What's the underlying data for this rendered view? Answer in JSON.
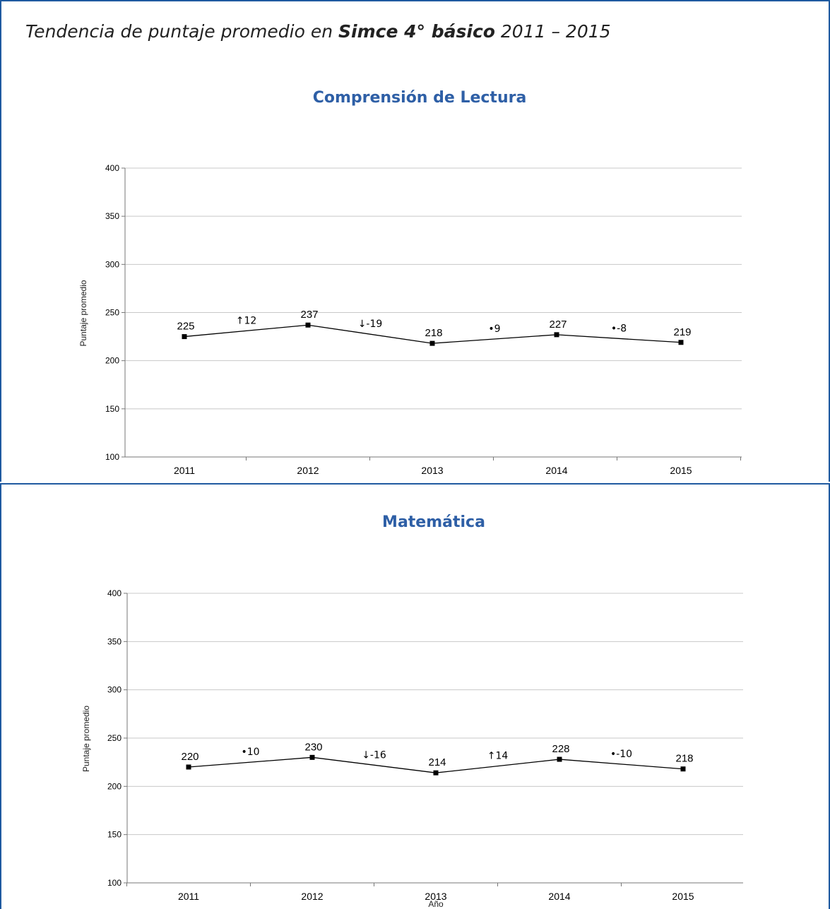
{
  "page_title": {
    "prefix": "Tendencia de puntaje promedio en ",
    "bold": "Simce 4° básico",
    "suffix": " 2011 – 2015"
  },
  "chart_data": [
    {
      "type": "line",
      "title": "Comprensión de Lectura",
      "ylabel": "Puntaje promedio",
      "xlabel": "",
      "ylim": [
        100,
        400
      ],
      "yticks": [
        100,
        150,
        200,
        250,
        300,
        350,
        400
      ],
      "grid": true,
      "categories": [
        "2011",
        "2012",
        "2013",
        "2014",
        "2015"
      ],
      "series": [
        {
          "values": [
            225,
            237,
            218,
            227,
            219
          ],
          "color": "#000000"
        }
      ],
      "changes": [
        "↑12",
        "↓-19",
        "•9",
        "•-8"
      ]
    },
    {
      "type": "line",
      "title": "Matemática",
      "ylabel": "Puntaje promedio",
      "xlabel": "Año",
      "ylim": [
        100,
        400
      ],
      "yticks": [
        100,
        150,
        200,
        250,
        300,
        350,
        400
      ],
      "grid": true,
      "categories": [
        "2011",
        "2012",
        "2013",
        "2014",
        "2015"
      ],
      "series": [
        {
          "values": [
            220,
            230,
            214,
            228,
            218
          ],
          "color": "#000000"
        }
      ],
      "changes": [
        "•10",
        "↓-16",
        "↑14",
        "•-10"
      ]
    }
  ]
}
